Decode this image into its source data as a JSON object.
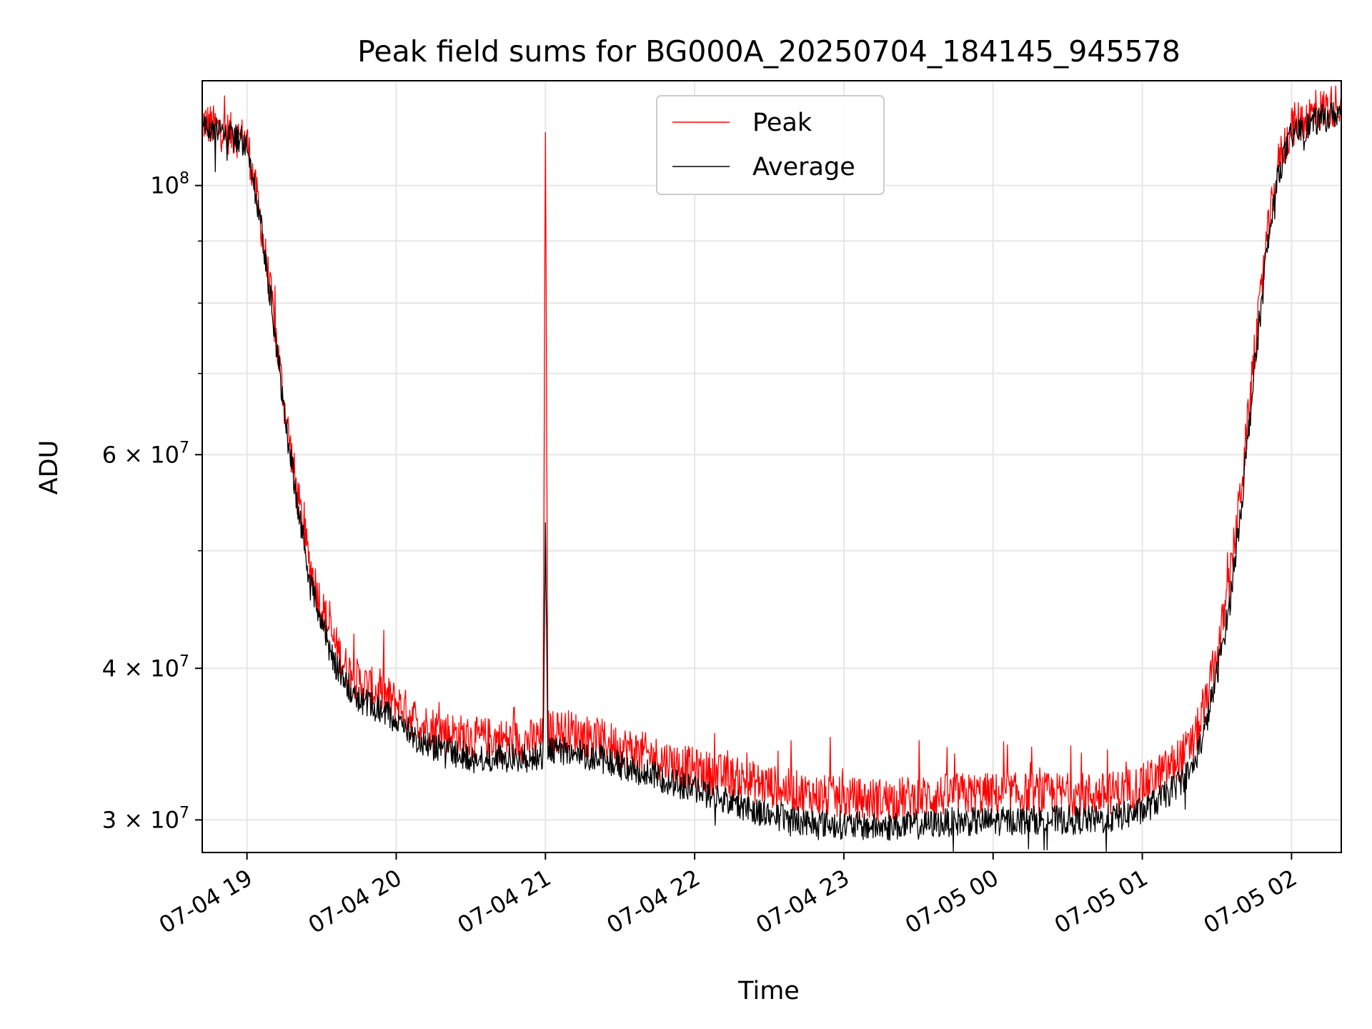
{
  "chart_data": {
    "type": "line",
    "title": "Peak field sums for BG000A_20250704_184145_945578",
    "xlabel": "Time",
    "ylabel": "ADU",
    "x_unit": "time",
    "xlim": [
      "07-04 18:42",
      "07-05 02:20"
    ],
    "ylim": [
      28200000,
      122000000
    ],
    "yscale": "log",
    "grid": true,
    "legend_location": "upper center",
    "x_ticks": [
      "07-04 19",
      "07-04 20",
      "07-04 21",
      "07-04 22",
      "07-04 23",
      "07-05 00",
      "07-05 01",
      "07-05 02"
    ],
    "y_ticks": [
      {
        "value": 100000000,
        "base": "10",
        "exp": "8"
      },
      {
        "value": 60000000,
        "base": "6 × 10",
        "exp": "7"
      },
      {
        "value": 40000000,
        "base": "4 × 10",
        "exp": "7"
      },
      {
        "value": 30000000,
        "base": "3 × 10",
        "exp": "7"
      }
    ],
    "y_minor_ticks": [
      90000000,
      80000000,
      70000000,
      50000000
    ],
    "series": [
      {
        "name": "Peak",
        "color": "#ff0000",
        "x": [
          "07-04 18:42",
          "07-04 18:50",
          "07-04 19:00",
          "07-04 19:05",
          "07-04 19:10",
          "07-04 19:15",
          "07-04 19:20",
          "07-04 19:25",
          "07-04 19:30",
          "07-04 19:35",
          "07-04 19:40",
          "07-04 19:45",
          "07-04 19:50",
          "07-04 20:00",
          "07-04 20:10",
          "07-04 20:20",
          "07-04 20:30",
          "07-04 20:40",
          "07-04 20:50",
          "07-04 20:59",
          "07-04 21:00",
          "07-04 21:01",
          "07-04 21:10",
          "07-04 21:20",
          "07-04 21:30",
          "07-04 21:40",
          "07-04 21:50",
          "07-04 22:00",
          "07-04 22:15",
          "07-04 22:30",
          "07-04 22:45",
          "07-04 23:00",
          "07-04 23:15",
          "07-04 23:30",
          "07-04 23:45",
          "07-05 00:00",
          "07-05 00:15",
          "07-05 00:30",
          "07-05 00:45",
          "07-05 01:00",
          "07-05 01:10",
          "07-05 01:20",
          "07-05 01:25",
          "07-05 01:30",
          "07-05 01:35",
          "07-05 01:40",
          "07-05 01:45",
          "07-05 01:50",
          "07-05 01:55",
          "07-05 02:00",
          "07-05 02:10",
          "07-05 02:20"
        ],
        "y": [
          113000000,
          111000000,
          109000000,
          95000000,
          80000000,
          66000000,
          56000000,
          49000000,
          45000000,
          42000000,
          40000000,
          39000000,
          38500000,
          37500000,
          36000000,
          35500000,
          35000000,
          35000000,
          34800000,
          35000000,
          110000000,
          35500000,
          35500000,
          35000000,
          34500000,
          34000000,
          33500000,
          33000000,
          32500000,
          32000000,
          31500000,
          31200000,
          31200000,
          31300000,
          31500000,
          31500000,
          31500000,
          31500000,
          31500000,
          32000000,
          33000000,
          34500000,
          37000000,
          41000000,
          47000000,
          57000000,
          72000000,
          90000000,
          105000000,
          112000000,
          115000000,
          117000000
        ]
      },
      {
        "name": "Average",
        "color": "#000000",
        "x": [
          "07-04 18:42",
          "07-04 18:50",
          "07-04 19:00",
          "07-04 19:05",
          "07-04 19:10",
          "07-04 19:15",
          "07-04 19:20",
          "07-04 19:25",
          "07-04 19:30",
          "07-04 19:35",
          "07-04 19:40",
          "07-04 19:45",
          "07-04 19:50",
          "07-04 20:00",
          "07-04 20:10",
          "07-04 20:20",
          "07-04 20:30",
          "07-04 20:40",
          "07-04 20:50",
          "07-04 20:59",
          "07-04 21:00",
          "07-04 21:01",
          "07-04 21:10",
          "07-04 21:20",
          "07-04 21:30",
          "07-04 21:40",
          "07-04 21:50",
          "07-04 22:00",
          "07-04 22:15",
          "07-04 22:30",
          "07-04 22:45",
          "07-04 23:00",
          "07-04 23:15",
          "07-04 23:30",
          "07-04 23:45",
          "07-05 00:00",
          "07-05 00:15",
          "07-05 00:30",
          "07-05 00:45",
          "07-05 01:00",
          "07-05 01:10",
          "07-05 01:20",
          "07-05 01:25",
          "07-05 01:30",
          "07-05 01:35",
          "07-05 01:40",
          "07-05 01:45",
          "07-05 01:50",
          "07-05 01:55",
          "07-05 02:00",
          "07-05 02:10",
          "07-05 02:20"
        ],
        "y": [
          112500000,
          110500000,
          108500000,
          94500000,
          79500000,
          65000000,
          55000000,
          47500000,
          43500000,
          40500000,
          38800000,
          37800000,
          37200000,
          36300000,
          34800000,
          34200000,
          33800000,
          33800000,
          33700000,
          33900000,
          52000000,
          34200000,
          34200000,
          33800000,
          33300000,
          32800000,
          32300000,
          31800000,
          31000000,
          30300000,
          29900000,
          29700000,
          29600000,
          29700000,
          29900000,
          29900000,
          30000000,
          30000000,
          30000000,
          30500000,
          31500000,
          33000000,
          35500000,
          39500000,
          45000000,
          55000000,
          70000000,
          88000000,
          103000000,
          110000000,
          113000000,
          115000000
        ]
      }
    ]
  }
}
